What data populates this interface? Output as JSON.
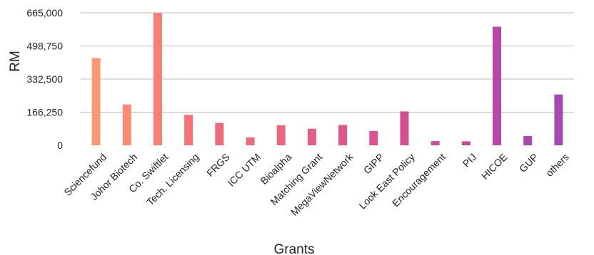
{
  "chart_data": {
    "type": "bar",
    "xlabel": "Grants",
    "ylabel": "RM",
    "ylim": [
      0,
      665000
    ],
    "yticks": [
      0,
      166250,
      332500,
      498750,
      665000
    ],
    "ytick_labels": [
      "0",
      "166,250",
      "332,500",
      "498,750",
      "665,000"
    ],
    "grid": true,
    "categories": [
      "Sciencefund",
      "Johor Biotech",
      "Co. Swiftlet",
      "Tech. Licensing",
      "FRGS",
      "ICC UTM",
      "Bioalpha",
      "Matching Grant",
      "MegaViewNetwork",
      "GIPP",
      "Look East Policy",
      "Encouragement",
      "PIJ",
      "HICOE",
      "GUP",
      "others"
    ],
    "values": [
      438000,
      205000,
      665000,
      153000,
      112000,
      40000,
      101000,
      83000,
      102000,
      72000,
      170000,
      21000,
      20000,
      595000,
      47000,
      255000
    ],
    "colors": [
      "#fd9872",
      "#fc8b74",
      "#fb7e75",
      "#f47377",
      "#f06b79",
      "#ec6a7d",
      "#e96580",
      "#e55d84",
      "#e05688",
      "#db538c",
      "#d64e92",
      "#cf4b98",
      "#c448a0",
      "#b648a8",
      "#ab4aac",
      "#a44bb0"
    ]
  }
}
